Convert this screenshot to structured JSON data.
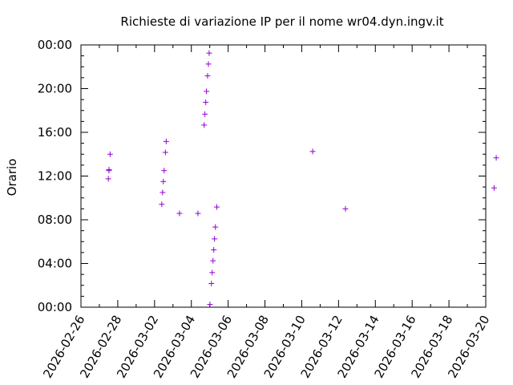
{
  "chart_data": {
    "type": "scatter",
    "title": "Richieste di variazione IP per il nome wr04.dyn.ingv.it",
    "ylabel": "Orario",
    "xlabel": "",
    "xlim": [
      "2026-02-26",
      "2026-03-20"
    ],
    "ylim": [
      "00:00",
      "24:00"
    ],
    "x_ticks": [
      "2026-02-26",
      "2026-02-28",
      "2026-03-02",
      "2026-03-04",
      "2026-03-06",
      "2026-03-08",
      "2026-03-10",
      "2026-03-12",
      "2026-03-14",
      "2026-03-16",
      "2026-03-18",
      "2026-03-20"
    ],
    "y_ticks": [
      "00:00",
      "04:00",
      "08:00",
      "12:00",
      "16:00",
      "20:00",
      "00:00"
    ],
    "grid": false,
    "marker": "+",
    "series": [
      {
        "color": "#9400d3",
        "points": [
          {
            "x": "2026-02-27",
            "y": "14:00"
          },
          {
            "x": "2026-02-27",
            "y": "12:35"
          },
          {
            "x": "2026-02-27",
            "y": "12:30"
          },
          {
            "x": "2026-02-27",
            "y": "11:45"
          },
          {
            "x": "2026-03-02",
            "y": "15:10"
          },
          {
            "x": "2026-03-02",
            "y": "14:10"
          },
          {
            "x": "2026-03-02",
            "y": "12:30"
          },
          {
            "x": "2026-03-02",
            "y": "11:30"
          },
          {
            "x": "2026-03-02",
            "y": "10:30"
          },
          {
            "x": "2026-03-02",
            "y": "09:25"
          },
          {
            "x": "2026-03-03",
            "y": "08:35"
          },
          {
            "x": "2026-03-04",
            "y": "23:15"
          },
          {
            "x": "2026-03-04",
            "y": "22:15"
          },
          {
            "x": "2026-03-04",
            "y": "21:10"
          },
          {
            "x": "2026-03-04",
            "y": "19:45"
          },
          {
            "x": "2026-03-04",
            "y": "18:45"
          },
          {
            "x": "2026-03-04",
            "y": "17:40"
          },
          {
            "x": "2026-03-04",
            "y": "16:40"
          },
          {
            "x": "2026-03-04",
            "y": "08:35"
          },
          {
            "x": "2026-03-05",
            "y": "09:10"
          },
          {
            "x": "2026-03-05",
            "y": "07:20"
          },
          {
            "x": "2026-03-05",
            "y": "06:15"
          },
          {
            "x": "2026-03-05",
            "y": "05:15"
          },
          {
            "x": "2026-03-05",
            "y": "04:15"
          },
          {
            "x": "2026-03-05",
            "y": "03:10"
          },
          {
            "x": "2026-03-05",
            "y": "02:10"
          },
          {
            "x": "2026-03-05",
            "y": "00:15"
          },
          {
            "x": "2026-03-10",
            "y": "14:15"
          },
          {
            "x": "2026-03-12",
            "y": "09:00"
          },
          {
            "x": "2026-03-20",
            "y": "13:40"
          },
          {
            "x": "2026-03-20",
            "y": "10:55"
          }
        ]
      }
    ]
  }
}
